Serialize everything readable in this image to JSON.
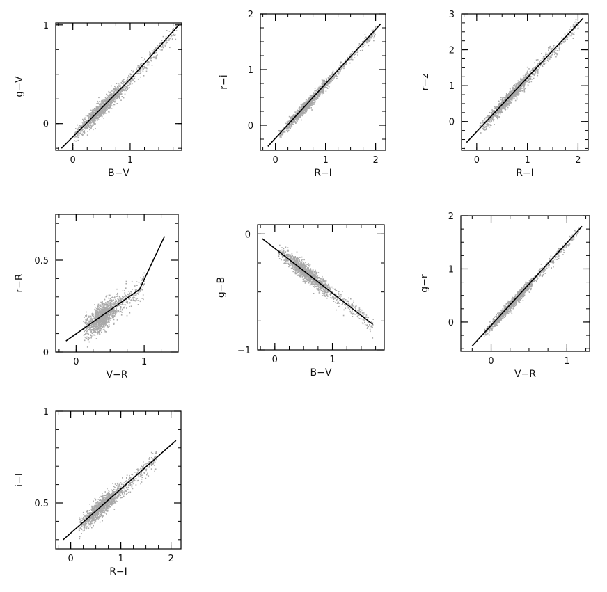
{
  "chart_data": [
    {
      "id": "gv-vs-bv",
      "type": "scatter",
      "xlabel": "B−V",
      "ylabel": "g−V",
      "xlim": [
        -0.3,
        1.9
      ],
      "ylim": [
        -0.27,
        1.02
      ],
      "xticks": [
        0,
        1
      ],
      "yticks": [
        0,
        1
      ],
      "fit_line": {
        "x": [
          -0.2,
          1.0,
          1.85
        ],
        "y": [
          -0.25,
          0.45,
          1.0
        ]
      },
      "scatter_band": {
        "x_range": [
          0.0,
          1.8
        ],
        "spread": 0.04
      },
      "point_color": "#a9a9a9",
      "grid": false
    },
    {
      "id": "ri-vs-RI",
      "type": "scatter",
      "xlabel": "R−I",
      "ylabel": "r−i",
      "xlim": [
        -0.3,
        2.2
      ],
      "ylim": [
        -0.45,
        2.0
      ],
      "xticks": [
        0,
        1,
        2
      ],
      "yticks": [
        0,
        1,
        2
      ],
      "fit_line": {
        "x": [
          -0.15,
          2.1
        ],
        "y": [
          -0.38,
          1.82
        ]
      },
      "scatter_band": {
        "x_range": [
          0.05,
          2.0
        ],
        "spread": 0.05
      },
      "point_color": "#a9a9a9",
      "grid": false
    },
    {
      "id": "rz-vs-RI",
      "type": "scatter",
      "xlabel": "R−I",
      "ylabel": "r−z",
      "xlim": [
        -0.3,
        2.2
      ],
      "ylim": [
        -0.8,
        3.0
      ],
      "xticks": [
        0,
        1,
        2
      ],
      "yticks": [
        0,
        1,
        2,
        3
      ],
      "fit_line": {
        "x": [
          -0.2,
          2.1
        ],
        "y": [
          -0.58,
          2.88
        ]
      },
      "scatter_band": {
        "x_range": [
          0.05,
          2.0
        ],
        "spread": 0.09
      },
      "point_color": "#a9a9a9",
      "grid": false
    },
    {
      "id": "rR-vs-VR",
      "type": "scatter",
      "xlabel": "V−R",
      "ylabel": "r−R",
      "xlim": [
        -0.3,
        1.5
      ],
      "ylim": [
        0.0,
        0.75
      ],
      "xticks": [
        0,
        1
      ],
      "yticks": [
        0,
        0.5
      ],
      "fit_line": {
        "x": [
          -0.15,
          0.93,
          1.3
        ],
        "y": [
          0.06,
          0.34,
          0.63
        ]
      },
      "scatter_band": {
        "x_range": [
          0.1,
          1.0
        ],
        "spread": 0.035
      },
      "point_color": "#a9a9a9",
      "grid": false
    },
    {
      "id": "gB-vs-BV",
      "type": "scatter",
      "xlabel": "B−V",
      "ylabel": "g−B",
      "xlim": [
        -0.3,
        1.9
      ],
      "ylim": [
        -1.0,
        0.08
      ],
      "xticks": [
        0,
        1
      ],
      "yticks": [
        0,
        -1
      ],
      "fit_line": {
        "x": [
          -0.22,
          1.7
        ],
        "y": [
          -0.04,
          -0.78
        ]
      },
      "scatter_band": {
        "x_range": [
          0.05,
          1.7
        ],
        "spread": 0.035
      },
      "point_color": "#a9a9a9",
      "grid": false
    },
    {
      "id": "gr-vs-VR",
      "type": "scatter",
      "xlabel": "V−R",
      "ylabel": "g−r",
      "xlim": [
        -0.4,
        1.3
      ],
      "ylim": [
        -0.55,
        2.0
      ],
      "xticks": [
        0,
        1
      ],
      "yticks": [
        0,
        1,
        2
      ],
      "fit_line": {
        "x": [
          -0.25,
          1.2
        ],
        "y": [
          -0.45,
          1.8
        ]
      },
      "scatter_band": {
        "x_range": [
          -0.1,
          1.15
        ],
        "spread": 0.05
      },
      "point_color": "#a9a9a9",
      "grid": false
    },
    {
      "id": "iI-vs-RI",
      "type": "scatter",
      "xlabel": "R−I",
      "ylabel": "i−I",
      "xlim": [
        -0.3,
        2.2
      ],
      "ylim": [
        0.25,
        1.0
      ],
      "xticks": [
        0,
        1,
        2
      ],
      "yticks": [
        0.5,
        1
      ],
      "fit_line": {
        "x": [
          -0.15,
          2.1
        ],
        "y": [
          0.3,
          0.84
        ]
      },
      "scatter_band": {
        "x_range": [
          0.15,
          1.7
        ],
        "spread": 0.025
      },
      "point_color": "#a9a9a9",
      "grid": false
    }
  ]
}
